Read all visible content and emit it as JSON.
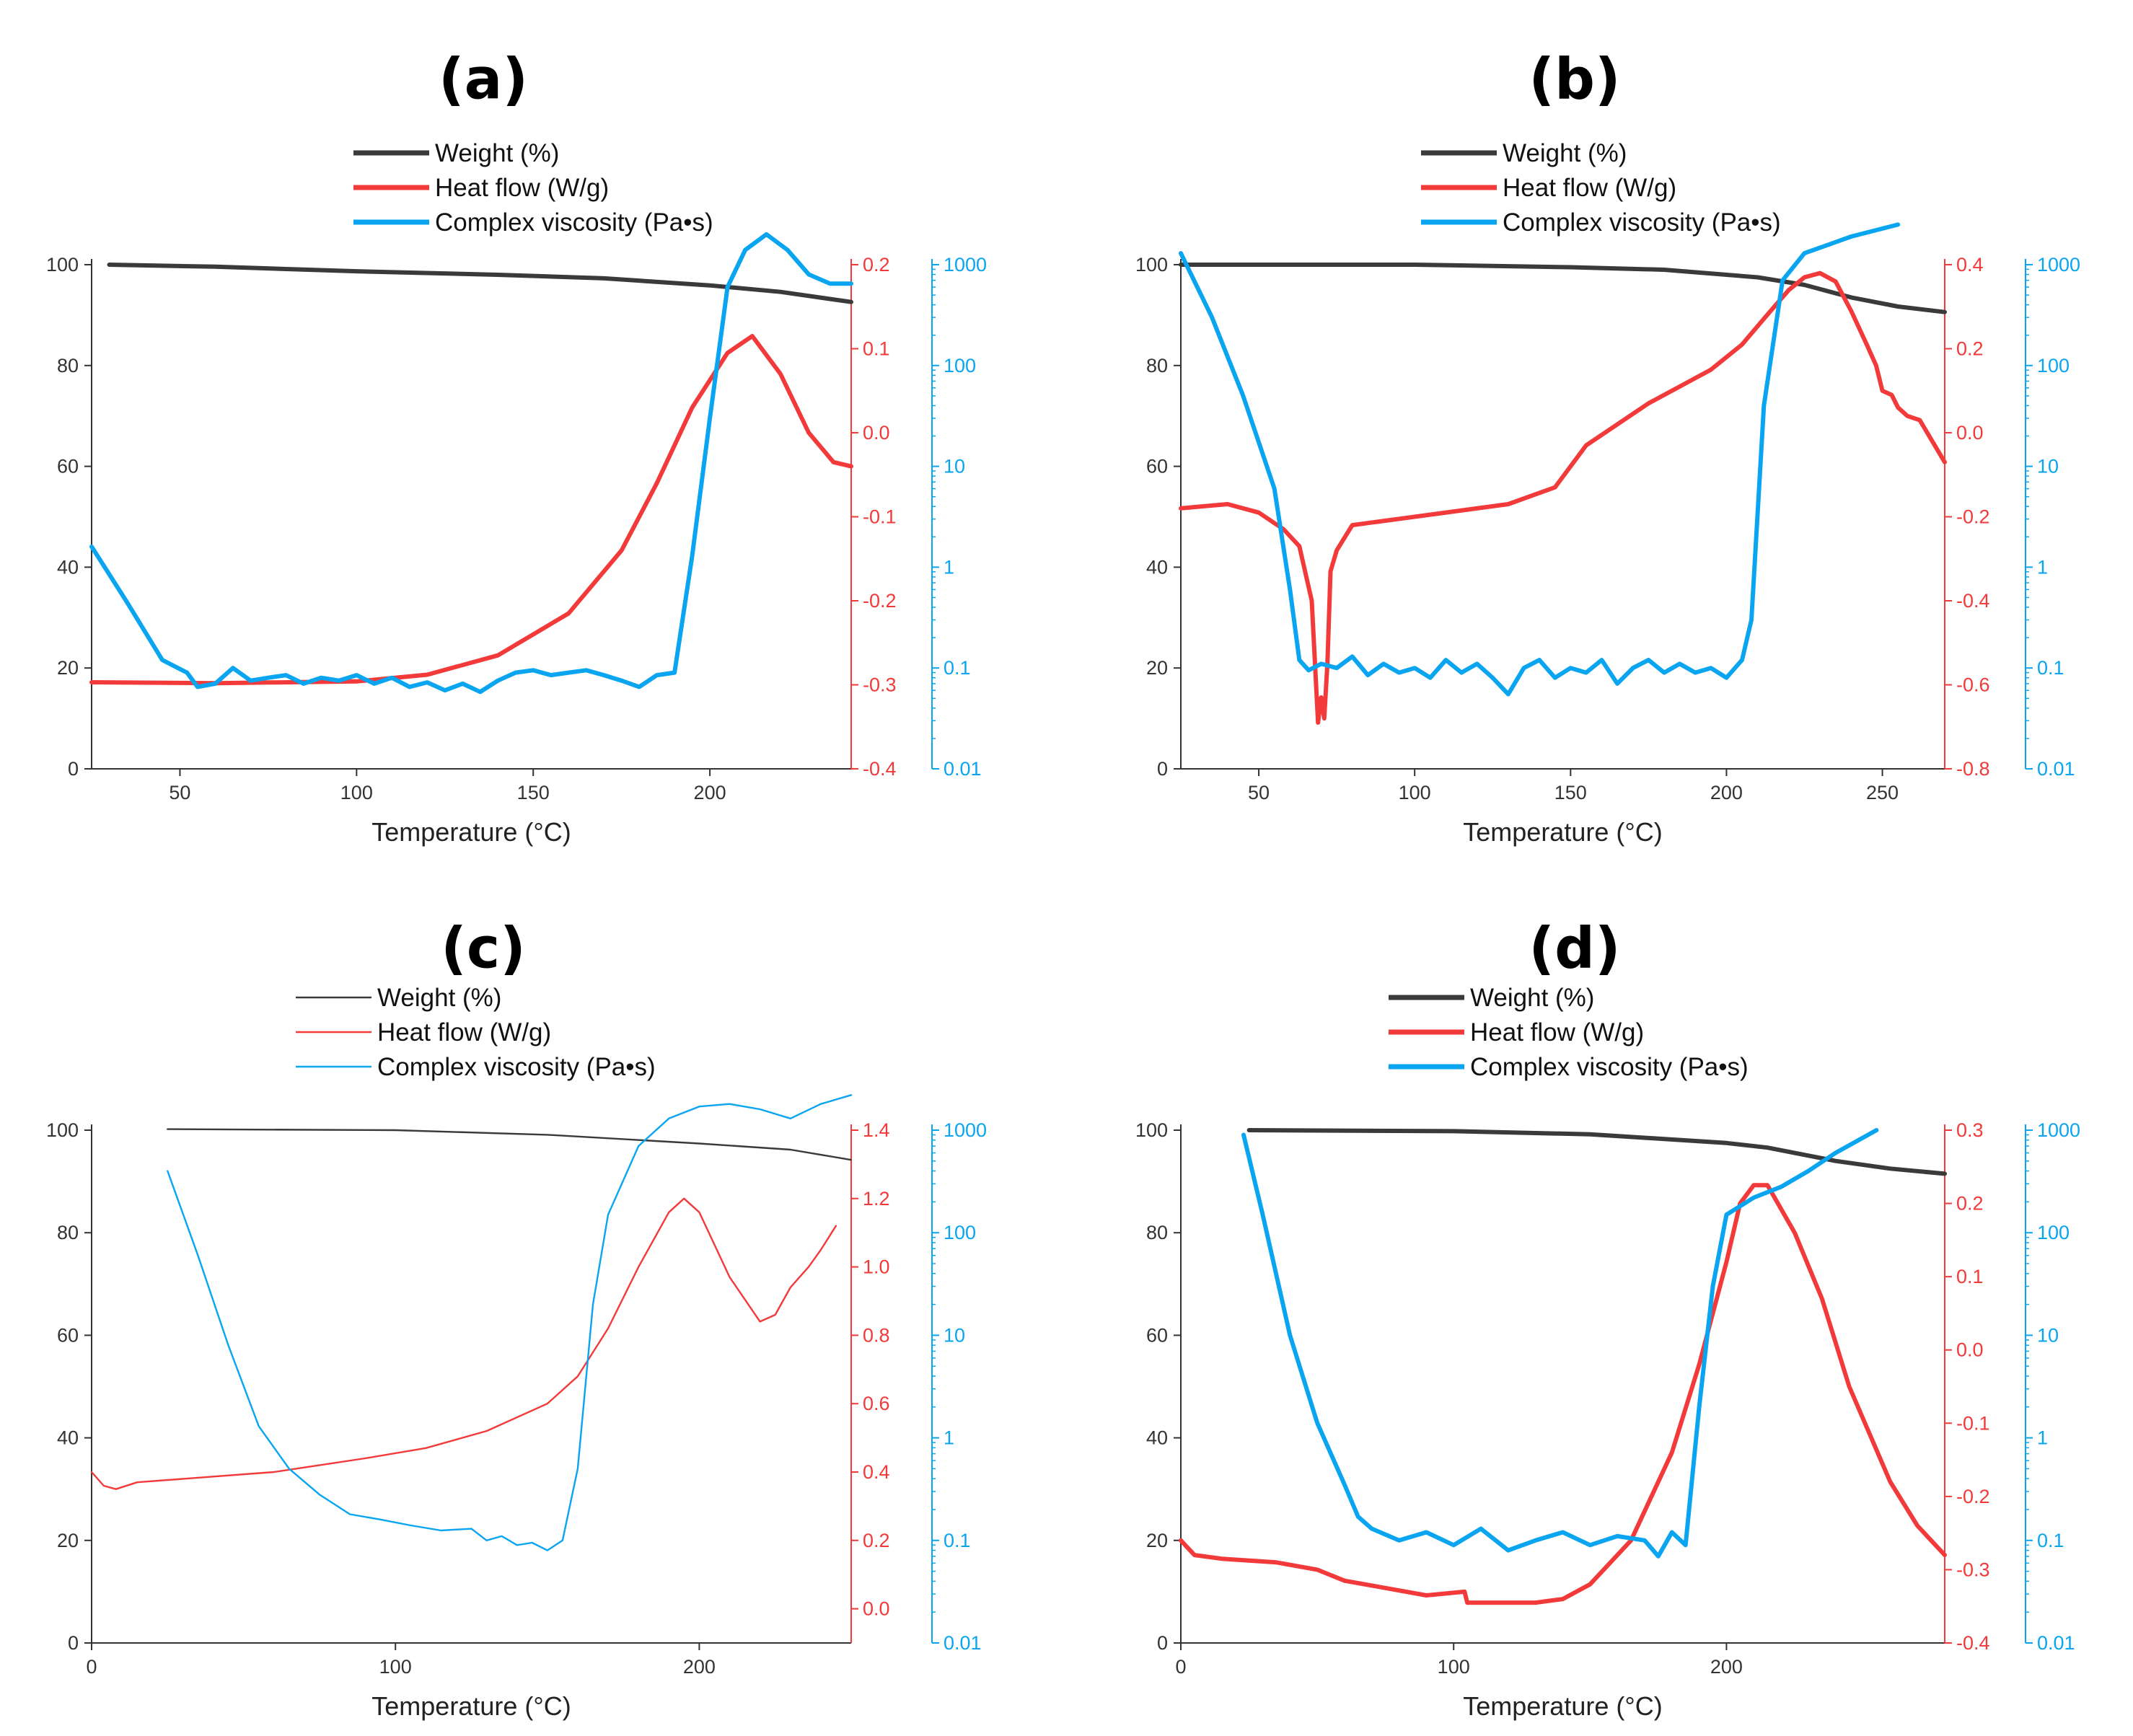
{
  "colors": {
    "weight": "#3a3a3a",
    "heat": "#f23a3a",
    "visc": "#0aa5f0",
    "axis": "#333333"
  },
  "chart_data": [
    {
      "type": "line",
      "title": "(a)",
      "xlabel": "Temperature (°C)",
      "xlim": [
        25,
        240
      ],
      "xticks": [
        50,
        100,
        150,
        200
      ],
      "y_left": {
        "lim": [
          0,
          100
        ],
        "ticks": [
          0,
          20,
          40,
          60,
          80,
          100
        ]
      },
      "y_right": {
        "lim": [
          -0.4,
          0.2
        ],
        "ticks": [
          -0.4,
          -0.3,
          -0.2,
          -0.1,
          0.0,
          0.1,
          0.2
        ],
        "labels": [
          "-0.4",
          "-0.3",
          "-0.2",
          "-0.1",
          "0.0",
          "0.1",
          "0.2"
        ]
      },
      "y_right2": {
        "scale": "log",
        "lim": [
          0.01,
          1000
        ],
        "ticks": [
          0.01,
          0.1,
          1,
          10,
          100,
          1000
        ],
        "labels": [
          "0.01",
          "0.1",
          "1",
          "10",
          "100",
          "1000"
        ]
      },
      "series": [
        {
          "name": "Weight (%)",
          "axis": "left",
          "x": [
            30,
            60,
            100,
            140,
            170,
            200,
            220,
            240
          ],
          "y": [
            100,
            99.6,
            98.7,
            98,
            97.3,
            95.9,
            94.6,
            92.6
          ]
        },
        {
          "name": "Heat flow (W/g)",
          "axis": "right",
          "x": [
            25,
            60,
            100,
            120,
            140,
            160,
            175,
            185,
            195,
            205,
            212,
            220,
            228,
            235,
            240
          ],
          "y": [
            -0.297,
            -0.298,
            -0.296,
            -0.288,
            -0.265,
            -0.215,
            -0.14,
            -0.06,
            0.03,
            0.095,
            0.115,
            0.07,
            0.0,
            -0.035,
            -0.04
          ]
        },
        {
          "name": "Complex viscosity (Pa•s)",
          "axis": "right2",
          "x": [
            25,
            35,
            45,
            52,
            55,
            60,
            65,
            70,
            75,
            80,
            85,
            90,
            95,
            100,
            105,
            110,
            115,
            120,
            125,
            130,
            135,
            140,
            145,
            150,
            155,
            160,
            165,
            170,
            175,
            180,
            185,
            190,
            195,
            200,
            205,
            210,
            216,
            222,
            228,
            234,
            240
          ],
          "y": [
            1.6,
            0.45,
            0.12,
            0.09,
            0.065,
            0.07,
            0.1,
            0.075,
            0.08,
            0.085,
            0.07,
            0.08,
            0.075,
            0.085,
            0.07,
            0.08,
            0.065,
            0.072,
            0.06,
            0.07,
            0.058,
            0.075,
            0.09,
            0.095,
            0.085,
            0.09,
            0.095,
            0.085,
            0.075,
            0.065,
            0.085,
            0.09,
            1.3,
            30,
            600,
            1400,
            2000,
            1400,
            800,
            650,
            650
          ]
        }
      ],
      "legend": [
        "Weight (%)",
        "Heat flow (W/g)",
        "Complex viscosity (Pa•s)"
      ],
      "legend_style": "thick"
    },
    {
      "type": "line",
      "title": "(b)",
      "xlabel": "Temperature (°C)",
      "xlim": [
        25,
        270
      ],
      "xticks": [
        50,
        100,
        150,
        200,
        250
      ],
      "y_left": {
        "lim": [
          0,
          100
        ],
        "ticks": [
          0,
          20,
          40,
          60,
          80,
          100
        ]
      },
      "y_right": {
        "lim": [
          -0.8,
          0.4
        ],
        "ticks": [
          -0.8,
          -0.6,
          -0.4,
          -0.2,
          0.0,
          0.2,
          0.4
        ],
        "labels": [
          "-0.8",
          "-0.6",
          "-0.4",
          "-0.2",
          "0.0",
          "0.2",
          "0.4"
        ]
      },
      "y_right2": {
        "scale": "log",
        "lim": [
          0.01,
          1000
        ],
        "ticks": [
          0.01,
          0.1,
          1,
          10,
          100,
          1000
        ],
        "labels": [
          "0.01",
          "0.1",
          "1",
          "10",
          "100",
          "1000"
        ]
      },
      "series": [
        {
          "name": "Weight (%)",
          "axis": "left",
          "x": [
            25,
            100,
            150,
            180,
            210,
            225,
            240,
            255,
            270
          ],
          "y": [
            100,
            100,
            99.5,
            99,
            97.5,
            96,
            93.5,
            91.7,
            90.6
          ]
        },
        {
          "name": "Heat flow (W/g)",
          "axis": "right",
          "x": [
            25,
            40,
            50,
            58,
            63,
            67,
            69,
            70,
            71,
            72,
            73,
            75,
            80,
            100,
            130,
            145,
            155,
            175,
            195,
            205,
            213,
            220,
            225,
            230,
            235,
            240,
            245,
            248,
            250,
            253,
            255,
            258,
            262,
            266,
            270
          ],
          "y": [
            -0.18,
            -0.17,
            -0.19,
            -0.23,
            -0.27,
            -0.4,
            -0.69,
            -0.63,
            -0.68,
            -0.55,
            -0.33,
            -0.28,
            -0.22,
            -0.2,
            -0.17,
            -0.13,
            -0.03,
            0.07,
            0.15,
            0.21,
            0.28,
            0.34,
            0.37,
            0.38,
            0.36,
            0.29,
            0.21,
            0.16,
            0.1,
            0.09,
            0.06,
            0.04,
            0.03,
            -0.02,
            -0.07
          ]
        },
        {
          "name": "Complex viscosity (Pa•s)",
          "axis": "right2",
          "x": [
            25,
            35,
            45,
            55,
            60,
            63,
            66,
            70,
            75,
            80,
            85,
            90,
            95,
            100,
            105,
            110,
            115,
            120,
            125,
            130,
            135,
            140,
            145,
            150,
            155,
            160,
            165,
            170,
            175,
            180,
            185,
            190,
            195,
            200,
            205,
            208,
            212,
            218,
            225,
            240,
            255
          ],
          "y": [
            1300,
            300,
            50,
            6,
            0.6,
            0.12,
            0.095,
            0.11,
            0.1,
            0.13,
            0.085,
            0.11,
            0.09,
            0.1,
            0.08,
            0.12,
            0.09,
            0.11,
            0.08,
            0.055,
            0.1,
            0.12,
            0.08,
            0.1,
            0.09,
            0.12,
            0.07,
            0.1,
            0.12,
            0.09,
            0.11,
            0.09,
            0.1,
            0.08,
            0.12,
            0.3,
            40,
            700,
            1300,
            1900,
            2500
          ]
        }
      ],
      "legend": [
        "Weight (%)",
        "Heat flow (W/g)",
        "Complex viscosity (Pa•s)"
      ],
      "legend_style": "thick"
    },
    {
      "type": "line",
      "title": "(c)",
      "xlabel": "Temperature (°C)",
      "xlim": [
        0,
        250
      ],
      "xticks": [
        0,
        100,
        200
      ],
      "y_left": {
        "lim": [
          0,
          100
        ],
        "ticks": [
          0,
          20,
          40,
          60,
          80,
          100
        ]
      },
      "y_right": {
        "lim": [
          -0.1,
          1.4
        ],
        "ticks": [
          0.0,
          0.2,
          0.4,
          0.6,
          0.8,
          1.0,
          1.2,
          1.4
        ],
        "labels": [
          "0.0",
          "0.2",
          "0.4",
          "0.6",
          "0.8",
          "1.0",
          "1.2",
          "1.4"
        ]
      },
      "y_right2": {
        "scale": "log",
        "lim": [
          0.01,
          1000
        ],
        "ticks": [
          0.01,
          0.1,
          1,
          10,
          100,
          1000
        ],
        "labels": [
          "0.01",
          "0.1",
          "1",
          "10",
          "100",
          "1000"
        ]
      },
      "series": [
        {
          "name": "Weight (%)",
          "axis": "left",
          "x": [
            25,
            100,
            150,
            200,
            230,
            250
          ],
          "y": [
            100.2,
            100,
            99.1,
            97.4,
            96.2,
            94.2
          ]
        },
        {
          "name": "Heat flow (W/g)",
          "axis": "right",
          "x": [
            0,
            4,
            8,
            15,
            30,
            60,
            90,
            110,
            130,
            150,
            160,
            170,
            180,
            190,
            195,
            200,
            210,
            220,
            225,
            230,
            236,
            240,
            245
          ],
          "y": [
            0.4,
            0.36,
            0.35,
            0.37,
            0.38,
            0.4,
            0.44,
            0.47,
            0.52,
            0.6,
            0.68,
            0.82,
            1.0,
            1.16,
            1.2,
            1.16,
            0.97,
            0.84,
            0.86,
            0.94,
            1.0,
            1.05,
            1.12
          ]
        },
        {
          "name": "Complex viscosity (Pa•s)",
          "axis": "right2",
          "x": [
            25,
            35,
            45,
            55,
            65,
            75,
            85,
            95,
            105,
            115,
            125,
            130,
            135,
            140,
            145,
            150,
            155,
            160,
            165,
            170,
            180,
            190,
            200,
            210,
            220,
            230,
            240,
            250
          ],
          "y": [
            400,
            60,
            8,
            1.3,
            0.5,
            0.28,
            0.18,
            0.16,
            0.14,
            0.125,
            0.13,
            0.1,
            0.11,
            0.09,
            0.095,
            0.08,
            0.1,
            0.5,
            20,
            150,
            700,
            1300,
            1700,
            1800,
            1600,
            1300,
            1800,
            2200
          ]
        }
      ],
      "legend": [
        "Weight (%)",
        "Heat flow (W/g)",
        "Complex viscosity (Pa•s)"
      ],
      "legend_style": "thin"
    },
    {
      "type": "line",
      "title": "(d)",
      "xlabel": "Temperature (°C)",
      "xlim": [
        0,
        280
      ],
      "xticks": [
        0,
        100,
        200
      ],
      "y_left": {
        "lim": [
          0,
          100
        ],
        "ticks": [
          0,
          20,
          40,
          60,
          80,
          100
        ]
      },
      "y_right": {
        "lim": [
          -0.4,
          0.3
        ],
        "ticks": [
          -0.4,
          -0.3,
          -0.2,
          -0.1,
          0.0,
          0.1,
          0.2,
          0.3
        ],
        "labels": [
          "-0.4",
          "-0.3",
          "-0.2",
          "-0.1",
          "0.0",
          "0.1",
          "0.2",
          "0.3"
        ]
      },
      "y_right2": {
        "scale": "log",
        "lim": [
          0.01,
          1000
        ],
        "ticks": [
          0.01,
          0.1,
          1,
          10,
          100,
          1000
        ],
        "labels": [
          "0.01",
          "0.1",
          "1",
          "10",
          "100",
          "1000"
        ]
      },
      "series": [
        {
          "name": "Weight (%)",
          "axis": "left",
          "x": [
            25,
            100,
            150,
            200,
            215,
            240,
            260,
            280
          ],
          "y": [
            100,
            99.8,
            99.2,
            97.5,
            96.6,
            94,
            92.5,
            91.5
          ]
        },
        {
          "name": "Heat flow (W/g)",
          "axis": "right",
          "x": [
            0,
            5,
            15,
            35,
            50,
            60,
            75,
            90,
            104,
            105,
            115,
            130,
            140,
            150,
            165,
            180,
            190,
            200,
            205,
            210,
            215,
            225,
            235,
            245,
            260,
            270,
            280
          ],
          "y": [
            -0.26,
            -0.28,
            -0.285,
            -0.29,
            -0.3,
            -0.315,
            -0.325,
            -0.335,
            -0.33,
            -0.345,
            -0.345,
            -0.345,
            -0.34,
            -0.32,
            -0.26,
            -0.14,
            -0.02,
            0.12,
            0.2,
            0.225,
            0.225,
            0.16,
            0.07,
            -0.05,
            -0.18,
            -0.24,
            -0.28
          ]
        },
        {
          "name": "Complex viscosity (Pa•s)",
          "axis": "right2",
          "x": [
            23,
            30,
            40,
            50,
            60,
            65,
            70,
            80,
            90,
            100,
            110,
            120,
            130,
            140,
            150,
            160,
            170,
            175,
            180,
            185,
            190,
            195,
            200,
            210,
            220,
            230,
            240,
            255
          ],
          "y": [
            900,
            150,
            10,
            1.4,
            0.35,
            0.17,
            0.13,
            0.1,
            0.12,
            0.09,
            0.13,
            0.08,
            0.1,
            0.12,
            0.09,
            0.11,
            0.1,
            0.07,
            0.12,
            0.09,
            2,
            30,
            150,
            220,
            280,
            400,
            600,
            1000
          ]
        }
      ],
      "legend": [
        "Weight (%)",
        "Heat flow (W/g)",
        "Complex viscosity (Pa•s)"
      ],
      "legend_style": "thick"
    }
  ]
}
